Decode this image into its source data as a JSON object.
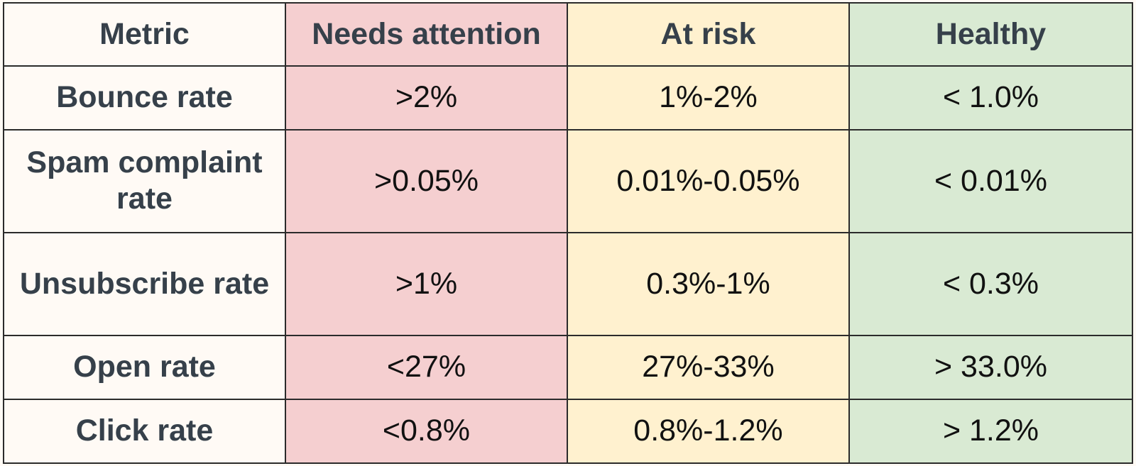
{
  "table": {
    "headers": {
      "metric": "Metric",
      "needs_attention": "Needs attention",
      "at_risk": "At risk",
      "healthy": "Healthy"
    },
    "colors": {
      "metric": "#fffaf5",
      "needs_attention": "#f5cfd0",
      "at_risk": "#fff1cf",
      "healthy": "#d9ead3"
    },
    "rows": [
      {
        "metric": "Bounce rate",
        "needs_attention": ">2%",
        "at_risk": "1%-2%",
        "healthy": "< 1.0%"
      },
      {
        "metric": "Spam complaint rate",
        "needs_attention": ">0.05%",
        "at_risk": "0.01%-0.05%",
        "healthy": "< 0.01%"
      },
      {
        "metric": "Unsubscribe rate",
        "needs_attention": ">1%",
        "at_risk": "0.3%-1%",
        "healthy": "< 0.3%"
      },
      {
        "metric": "Open rate",
        "needs_attention": "<27%",
        "at_risk": "27%-33%",
        "healthy": "> 33.0%"
      },
      {
        "metric": "Click rate",
        "needs_attention": "<0.8%",
        "at_risk": "0.8%-1.2%",
        "healthy": "> 1.2%"
      }
    ]
  }
}
